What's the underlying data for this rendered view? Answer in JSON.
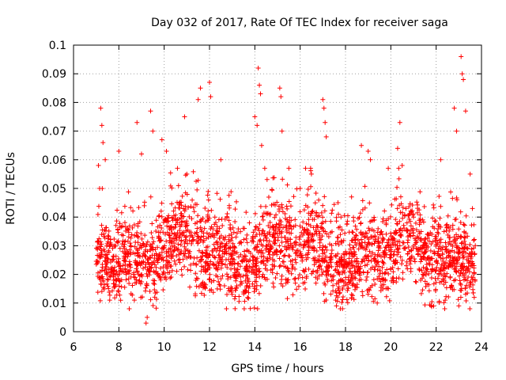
{
  "chart_data": {
    "type": "scatter",
    "title": "Day 032 of 2017, Rate Of TEC Index for receiver saga",
    "xlabel": "GPS time / hours",
    "ylabel": "ROTI / TECUs",
    "xlim": [
      6,
      24
    ],
    "ylim": [
      0,
      0.1
    ],
    "x_ticks": [
      6,
      8,
      10,
      12,
      14,
      16,
      18,
      20,
      22,
      24
    ],
    "x_tick_labels": [
      "6",
      "8",
      "10",
      "12",
      "14",
      "16",
      "18",
      "20",
      "22",
      "24"
    ],
    "y_ticks": [
      0,
      0.01,
      0.02,
      0.03,
      0.04,
      0.05,
      0.06,
      0.07,
      0.08,
      0.09,
      0.1
    ],
    "y_tick_labels": [
      "0",
      "0.01",
      "0.02",
      "0.03",
      "0.04",
      "0.05",
      "0.06",
      "0.07",
      "0.08",
      "0.09",
      "0.1"
    ],
    "grid": true,
    "marker": "+",
    "series_color": "#ff0000",
    "time_range_hours": [
      7.0,
      23.75
    ],
    "points": [
      [
        7.2,
        0.078
      ],
      [
        7.25,
        0.072
      ],
      [
        7.3,
        0.066
      ],
      [
        7.1,
        0.058
      ],
      [
        7.15,
        0.05
      ],
      [
        7.4,
        0.06
      ],
      [
        8.0,
        0.063
      ],
      [
        8.8,
        0.073
      ],
      [
        9.0,
        0.062
      ],
      [
        9.4,
        0.077
      ],
      [
        9.5,
        0.07
      ],
      [
        9.9,
        0.067
      ],
      [
        10.1,
        0.063
      ],
      [
        10.9,
        0.075
      ],
      [
        11.0,
        0.055
      ],
      [
        11.5,
        0.081
      ],
      [
        11.6,
        0.085
      ],
      [
        12.0,
        0.087
      ],
      [
        12.05,
        0.082
      ],
      [
        12.5,
        0.06
      ],
      [
        14.0,
        0.075
      ],
      [
        14.1,
        0.072
      ],
      [
        14.15,
        0.092
      ],
      [
        14.2,
        0.086
      ],
      [
        14.25,
        0.083
      ],
      [
        14.3,
        0.065
      ],
      [
        15.1,
        0.085
      ],
      [
        15.15,
        0.082
      ],
      [
        15.2,
        0.07
      ],
      [
        15.5,
        0.057
      ],
      [
        16.0,
        0.05
      ],
      [
        17.0,
        0.081
      ],
      [
        17.05,
        0.078
      ],
      [
        17.1,
        0.073
      ],
      [
        17.15,
        0.068
      ],
      [
        17.8,
        0.04
      ],
      [
        18.7,
        0.065
      ],
      [
        19.0,
        0.063
      ],
      [
        19.1,
        0.06
      ],
      [
        20.4,
        0.073
      ],
      [
        20.3,
        0.064
      ],
      [
        20.5,
        0.058
      ],
      [
        21.0,
        0.04
      ],
      [
        22.2,
        0.06
      ],
      [
        22.8,
        0.078
      ],
      [
        22.9,
        0.07
      ],
      [
        23.1,
        0.096
      ],
      [
        23.15,
        0.09
      ],
      [
        23.2,
        0.088
      ],
      [
        23.3,
        0.077
      ],
      [
        23.5,
        0.055
      ],
      [
        23.6,
        0.043
      ],
      [
        9.2,
        0.003
      ],
      [
        9.25,
        0.005
      ],
      [
        17.6,
        0.009
      ],
      [
        19.4,
        0.01
      ],
      [
        23.0,
        0.009
      ],
      [
        22.4,
        0.011
      ]
    ],
    "band": {
      "description_values": "dense cluster of ROTI values between about 0.01 and 0.045 TECUs from 7.0 to 23.75 hours",
      "low": 0.01,
      "high": 0.045
    }
  }
}
